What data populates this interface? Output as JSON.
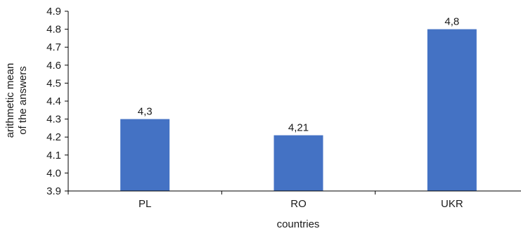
{
  "chart_data": {
    "type": "bar",
    "categories": [
      "PL",
      "RO",
      "UKR"
    ],
    "values": [
      4.3,
      4.21,
      4.8
    ],
    "data_labels": [
      "4,3",
      "4,21",
      "4,8"
    ],
    "xlabel": "countries",
    "ylabel_lines": [
      "arithmetic mean",
      "of the answers"
    ],
    "ylim": [
      3.9,
      4.9
    ],
    "yticks": [
      3.9,
      4.0,
      4.1,
      4.2,
      4.3,
      4.4,
      4.5,
      4.6,
      4.7,
      4.8,
      4.9
    ],
    "ytick_labels": [
      "3.9",
      "4.0",
      "4.1",
      "4.2",
      "4.3",
      "4.4",
      "4.5",
      "4.6",
      "4.7",
      "4.8",
      "4.9"
    ],
    "grid": false,
    "bar_color": "#4472C4",
    "axis_color": "#000000"
  }
}
